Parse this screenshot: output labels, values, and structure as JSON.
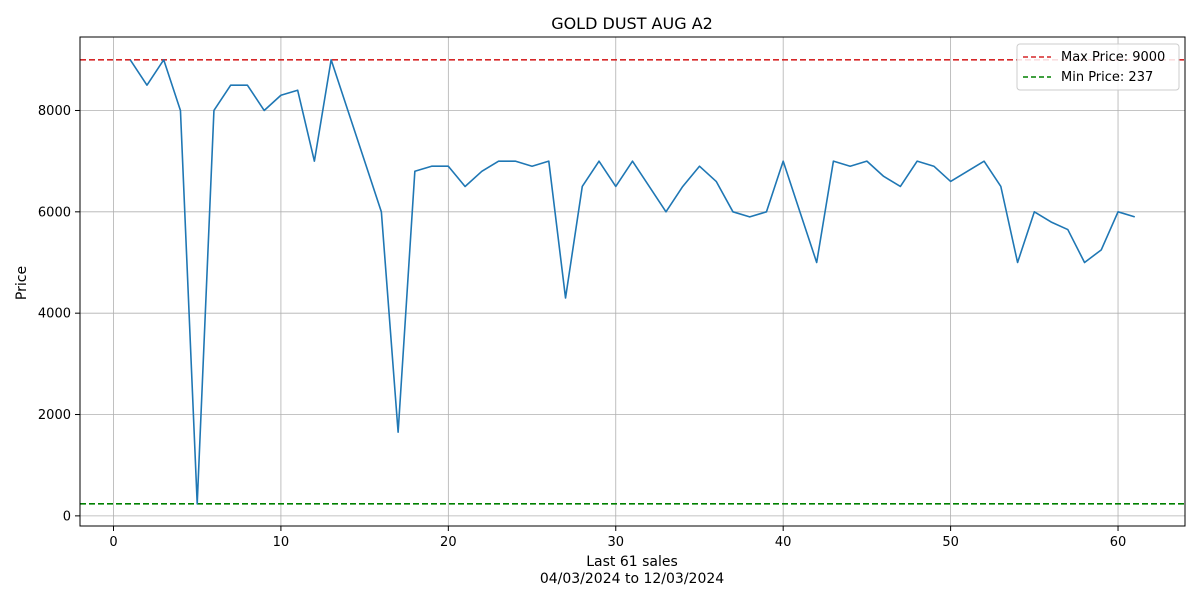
{
  "chart_data": {
    "type": "line",
    "title": "GOLD DUST AUG A2",
    "xlabel": "Last 61 sales",
    "xlabel_sub": "04/03/2024 to 12/03/2024",
    "ylabel": "Price",
    "xlim": [
      -2,
      64
    ],
    "ylim": [
      -200,
      9450
    ],
    "xticks": [
      0,
      10,
      20,
      30,
      40,
      50,
      60
    ],
    "yticks": [
      0,
      2000,
      4000,
      6000,
      8000
    ],
    "grid": true,
    "legend_position": "top-right",
    "series": [
      {
        "color": "#1f77b4",
        "x": [
          1,
          2,
          3,
          4,
          5,
          6,
          7,
          8,
          9,
          10,
          11,
          12,
          13,
          14,
          15,
          16,
          17,
          18,
          19,
          20,
          21,
          22,
          23,
          24,
          25,
          26,
          27,
          28,
          29,
          30,
          31,
          32,
          33,
          34,
          35,
          36,
          37,
          38,
          39,
          40,
          41,
          42,
          43,
          44,
          45,
          46,
          47,
          48,
          49,
          50,
          51,
          52,
          53,
          54,
          55,
          56,
          57,
          58,
          59,
          60,
          61
        ],
        "y": [
          9000,
          8500,
          9000,
          8000,
          237,
          8000,
          8500,
          8500,
          8000,
          8300,
          8400,
          7000,
          9000,
          8000,
          7000,
          6000,
          1650,
          6800,
          6900,
          6900,
          6500,
          6800,
          7000,
          7000,
          6900,
          7000,
          4300,
          6500,
          7000,
          6500,
          7000,
          6500,
          6000,
          6500,
          6900,
          6600,
          6000,
          5900,
          6000,
          7000,
          6000,
          5000,
          7000,
          6900,
          7000,
          6700,
          6500,
          7000,
          6900,
          6600,
          6800,
          7000,
          6500,
          5000,
          6000,
          5800,
          5650,
          5000,
          5250,
          6000,
          5900
        ]
      }
    ],
    "reference_lines": [
      {
        "label": "Max Price: 9000",
        "value": 9000,
        "color": "#d62728"
      },
      {
        "label": "Min Price: 237",
        "value": 237,
        "color": "#008000"
      }
    ]
  }
}
